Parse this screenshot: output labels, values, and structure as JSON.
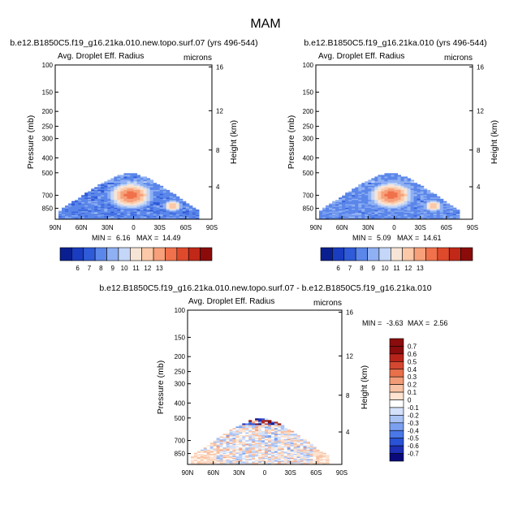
{
  "suptitle": "MAM",
  "chart_data": [
    {
      "type": "heatmap",
      "title": "b.e12.B1850C5.f19_g16.21ka.010.new.topo.surf.07 (yrs 496-544)",
      "subtitle_left": "Avg. Droplet Eff. Radius",
      "subtitle_right": "microns",
      "xlabel": "",
      "ylabel": "Pressure (mb)",
      "ylabel_right": "Height (km)",
      "x_ticks": [
        "90N",
        "60N",
        "30N",
        "0",
        "30S",
        "60S",
        "90S"
      ],
      "y_ticks": [
        "100",
        "150",
        "200",
        "250",
        "300",
        "400",
        "500",
        "700",
        "850"
      ],
      "y_right_ticks": [
        "16",
        "12",
        "8",
        "4"
      ],
      "ylim": [
        1000,
        100
      ],
      "log_y": true,
      "min_text": "MIN =",
      "min": "6.16",
      "max_text": "MAX =",
      "max": "14.49",
      "colorbar_labels": [
        "6",
        "7",
        "8",
        "9",
        "10",
        "11",
        "12",
        "13"
      ],
      "peak": {
        "lat": 3,
        "p": 700,
        "value": 14.5
      }
    },
    {
      "type": "heatmap",
      "title": "b.e12.B1850C5.f19_g16.21ka.010 (yrs 496-544)",
      "subtitle_left": "Avg. Droplet Eff. Radius",
      "subtitle_right": "microns",
      "xlabel": "",
      "ylabel": "Pressure (mb)",
      "ylabel_right": "Height (km)",
      "x_ticks": [
        "90N",
        "60N",
        "30N",
        "0",
        "30S",
        "60S",
        "90S"
      ],
      "y_ticks": [
        "100",
        "150",
        "200",
        "250",
        "300",
        "400",
        "500",
        "700",
        "850"
      ],
      "y_right_ticks": [
        "16",
        "12",
        "8",
        "4"
      ],
      "ylim": [
        1000,
        100
      ],
      "log_y": true,
      "min_text": "MIN =",
      "min": "5.09",
      "max_text": "MAX =",
      "max": "14.61",
      "colorbar_labels": [
        "6",
        "7",
        "8",
        "9",
        "10",
        "11",
        "12",
        "13"
      ],
      "peak": {
        "lat": 3,
        "p": 700,
        "value": 14.6
      }
    },
    {
      "type": "heatmap",
      "title": "b.e12.B1850C5.f19_g16.21ka.010.new.topo.surf.07 - b.e12.B1850C5.f19_g16.21ka.010",
      "subtitle_left": "Avg. Droplet Eff. Radius",
      "subtitle_right": "microns",
      "xlabel": "",
      "ylabel": "Pressure (mb)",
      "ylabel_right": "Height (km)",
      "x_ticks": [
        "90N",
        "60N",
        "30N",
        "0",
        "30S",
        "60S",
        "90S"
      ],
      "y_ticks": [
        "100",
        "150",
        "200",
        "250",
        "300",
        "400",
        "500",
        "700",
        "850"
      ],
      "y_right_ticks": [
        "16",
        "12",
        "8",
        "4"
      ],
      "ylim": [
        1000,
        100
      ],
      "log_y": true,
      "min_text": "MIN =",
      "min": "-3.63",
      "max_text": "MAX =",
      "max": "2.56",
      "colorbar_labels": [
        "0.7",
        "0.6",
        "0.5",
        "0.4",
        "0.3",
        "0.2",
        "0.1",
        "0",
        "-0.1",
        "-0.2",
        "-0.3",
        "-0.4",
        "-0.5",
        "-0.6",
        "-0.7"
      ]
    }
  ],
  "colors": {
    "abs_palette": [
      "#0a1f8f",
      "#1a3cc0",
      "#2f5bd9",
      "#5b86ea",
      "#8fb0f2",
      "#c5d7f8",
      "#f6e4d6",
      "#fbc9a8",
      "#f7a07a",
      "#f0714b",
      "#e04a2c",
      "#c12818",
      "#8b0b0b"
    ],
    "diff_palette": [
      "#0a0a7a",
      "#1c2fb5",
      "#2a52d6",
      "#4a78e6",
      "#7aa0ef",
      "#a9c3f5",
      "#d3e1fa",
      "#ffffff",
      "#fde3d0",
      "#f8c2a4",
      "#f29c77",
      "#e8704b",
      "#d44730",
      "#b8241a",
      "#8a0c0c"
    ]
  }
}
